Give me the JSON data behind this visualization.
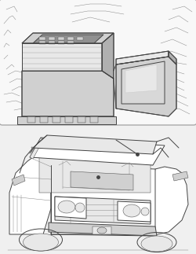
{
  "page_bg": "#f0f0f0",
  "line_color": "#444444",
  "light_line": "#888888",
  "fill_white": "#ffffff",
  "fill_light": "#e8e8e8",
  "fill_mid": "#d0d0d0",
  "fill_dark": "#b0b0b0",
  "fill_darker": "#909090",
  "fill_box_bg": "#f5f5f5",
  "top_panel_bg": "#f8f8f8",
  "fig_width": 2.5,
  "fig_height": 3.23,
  "dpi": 100
}
